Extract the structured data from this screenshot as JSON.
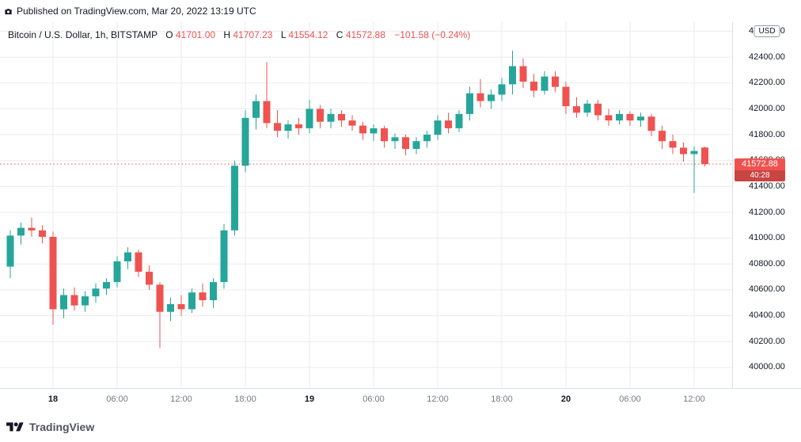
{
  "publish_bar": {
    "text": "Published on TradingView.com, Mar 20, 2022 13:19 UTC"
  },
  "header": {
    "symbol": "Bitcoin / U.S. Dollar, 1h, BITSTAMP",
    "o_label": "O",
    "o_value": "41701.00",
    "h_label": "H",
    "h_value": "41707.23",
    "l_label": "L",
    "l_value": "41554.12",
    "c_label": "C",
    "c_value": "41572.88",
    "change": "−101.58 (−0.24%)"
  },
  "price_scale": {
    "currency_chip": "USD",
    "last_price": "41572.88",
    "countdown": "40:28"
  },
  "footer": {
    "brand": "TradingView"
  },
  "chart_data": {
    "type": "candlestick",
    "title": "Bitcoin / U.S. Dollar, 1h, BITSTAMP",
    "up_color": "#26a69a",
    "down_color": "#ef5350",
    "grid": true,
    "legend_position": "none",
    "y_axis": {
      "min": 39840,
      "max": 42670,
      "tick_step": 200,
      "ticks": [
        40000,
        40200,
        40400,
        40600,
        40800,
        41000,
        41200,
        41400,
        41600,
        41800,
        42000,
        42200,
        42400,
        42600
      ]
    },
    "x_ticks": [
      {
        "index": 4,
        "label": "18",
        "major": true
      },
      {
        "index": 10,
        "label": "06:00",
        "major": false
      },
      {
        "index": 16,
        "label": "12:00",
        "major": false
      },
      {
        "index": 22,
        "label": "18:00",
        "major": false
      },
      {
        "index": 28,
        "label": "19",
        "major": true
      },
      {
        "index": 34,
        "label": "06:00",
        "major": false
      },
      {
        "index": 40,
        "label": "12:00",
        "major": false
      },
      {
        "index": 46,
        "label": "18:00",
        "major": false
      },
      {
        "index": 52,
        "label": "20",
        "major": true
      },
      {
        "index": 58,
        "label": "06:00",
        "major": false
      },
      {
        "index": 64,
        "label": "12:00",
        "major": false
      }
    ],
    "last_price": 41572.88,
    "candles": [
      [
        40780,
        41060,
        40690,
        41020
      ],
      [
        41020,
        41120,
        40950,
        41080
      ],
      [
        41080,
        41160,
        41010,
        41060
      ],
      [
        41060,
        41100,
        40960,
        41010
      ],
      [
        41010,
        41050,
        40330,
        40450
      ],
      [
        40450,
        40610,
        40380,
        40560
      ],
      [
        40560,
        40620,
        40440,
        40480
      ],
      [
        40480,
        40590,
        40430,
        40550
      ],
      [
        40550,
        40650,
        40500,
        40610
      ],
      [
        40610,
        40690,
        40560,
        40660
      ],
      [
        40660,
        40860,
        40620,
        40820
      ],
      [
        40820,
        40930,
        40760,
        40890
      ],
      [
        40890,
        40910,
        40700,
        40740
      ],
      [
        40740,
        40790,
        40600,
        40640
      ],
      [
        40640,
        40660,
        40150,
        40430
      ],
      [
        40430,
        40540,
        40360,
        40490
      ],
      [
        40490,
        40560,
        40400,
        40450
      ],
      [
        40450,
        40610,
        40420,
        40580
      ],
      [
        40580,
        40650,
        40470,
        40520
      ],
      [
        40520,
        40690,
        40460,
        40660
      ],
      [
        40660,
        41110,
        40610,
        41060
      ],
      [
        41060,
        41600,
        41020,
        41560
      ],
      [
        41560,
        41990,
        41510,
        41930
      ],
      [
        41930,
        42110,
        41840,
        42060
      ],
      [
        42060,
        42360,
        41850,
        41890
      ],
      [
        41890,
        41990,
        41780,
        41830
      ],
      [
        41830,
        41910,
        41770,
        41880
      ],
      [
        41880,
        41930,
        41800,
        41850
      ],
      [
        41850,
        42070,
        41810,
        42000
      ],
      [
        42000,
        42030,
        41850,
        41900
      ],
      [
        41900,
        42000,
        41850,
        41960
      ],
      [
        41960,
        41990,
        41860,
        41910
      ],
      [
        41910,
        41950,
        41830,
        41870
      ],
      [
        41870,
        41900,
        41760,
        41810
      ],
      [
        41810,
        41880,
        41750,
        41850
      ],
      [
        41850,
        41870,
        41700,
        41750
      ],
      [
        41750,
        41810,
        41690,
        41780
      ],
      [
        41780,
        41800,
        41640,
        41690
      ],
      [
        41690,
        41780,
        41650,
        41750
      ],
      [
        41750,
        41830,
        41700,
        41800
      ],
      [
        41800,
        41950,
        41760,
        41910
      ],
      [
        41910,
        41970,
        41810,
        41850
      ],
      [
        41850,
        41990,
        41820,
        41960
      ],
      [
        41960,
        42170,
        41910,
        42120
      ],
      [
        42120,
        42230,
        42010,
        42060
      ],
      [
        42060,
        42150,
        42000,
        42110
      ],
      [
        42110,
        42240,
        42060,
        42190
      ],
      [
        42190,
        42450,
        42110,
        42330
      ],
      [
        42330,
        42390,
        42160,
        42210
      ],
      [
        42210,
        42270,
        42090,
        42140
      ],
      [
        42140,
        42290,
        42110,
        42250
      ],
      [
        42250,
        42290,
        42130,
        42170
      ],
      [
        42170,
        42210,
        41960,
        42020
      ],
      [
        42020,
        42090,
        41930,
        41970
      ],
      [
        41970,
        42070,
        41940,
        42040
      ],
      [
        42040,
        42070,
        41910,
        41950
      ],
      [
        41950,
        42000,
        41870,
        41910
      ],
      [
        41910,
        41990,
        41880,
        41960
      ],
      [
        41960,
        41980,
        41870,
        41910
      ],
      [
        41910,
        41970,
        41860,
        41940
      ],
      [
        41940,
        41960,
        41790,
        41830
      ],
      [
        41830,
        41870,
        41690,
        41750
      ],
      [
        41750,
        41800,
        41650,
        41700
      ],
      [
        41700,
        41740,
        41590,
        41650
      ],
      [
        41650,
        41710,
        41350,
        41674
      ],
      [
        41701,
        41707.23,
        41554.12,
        41572.88
      ]
    ]
  }
}
